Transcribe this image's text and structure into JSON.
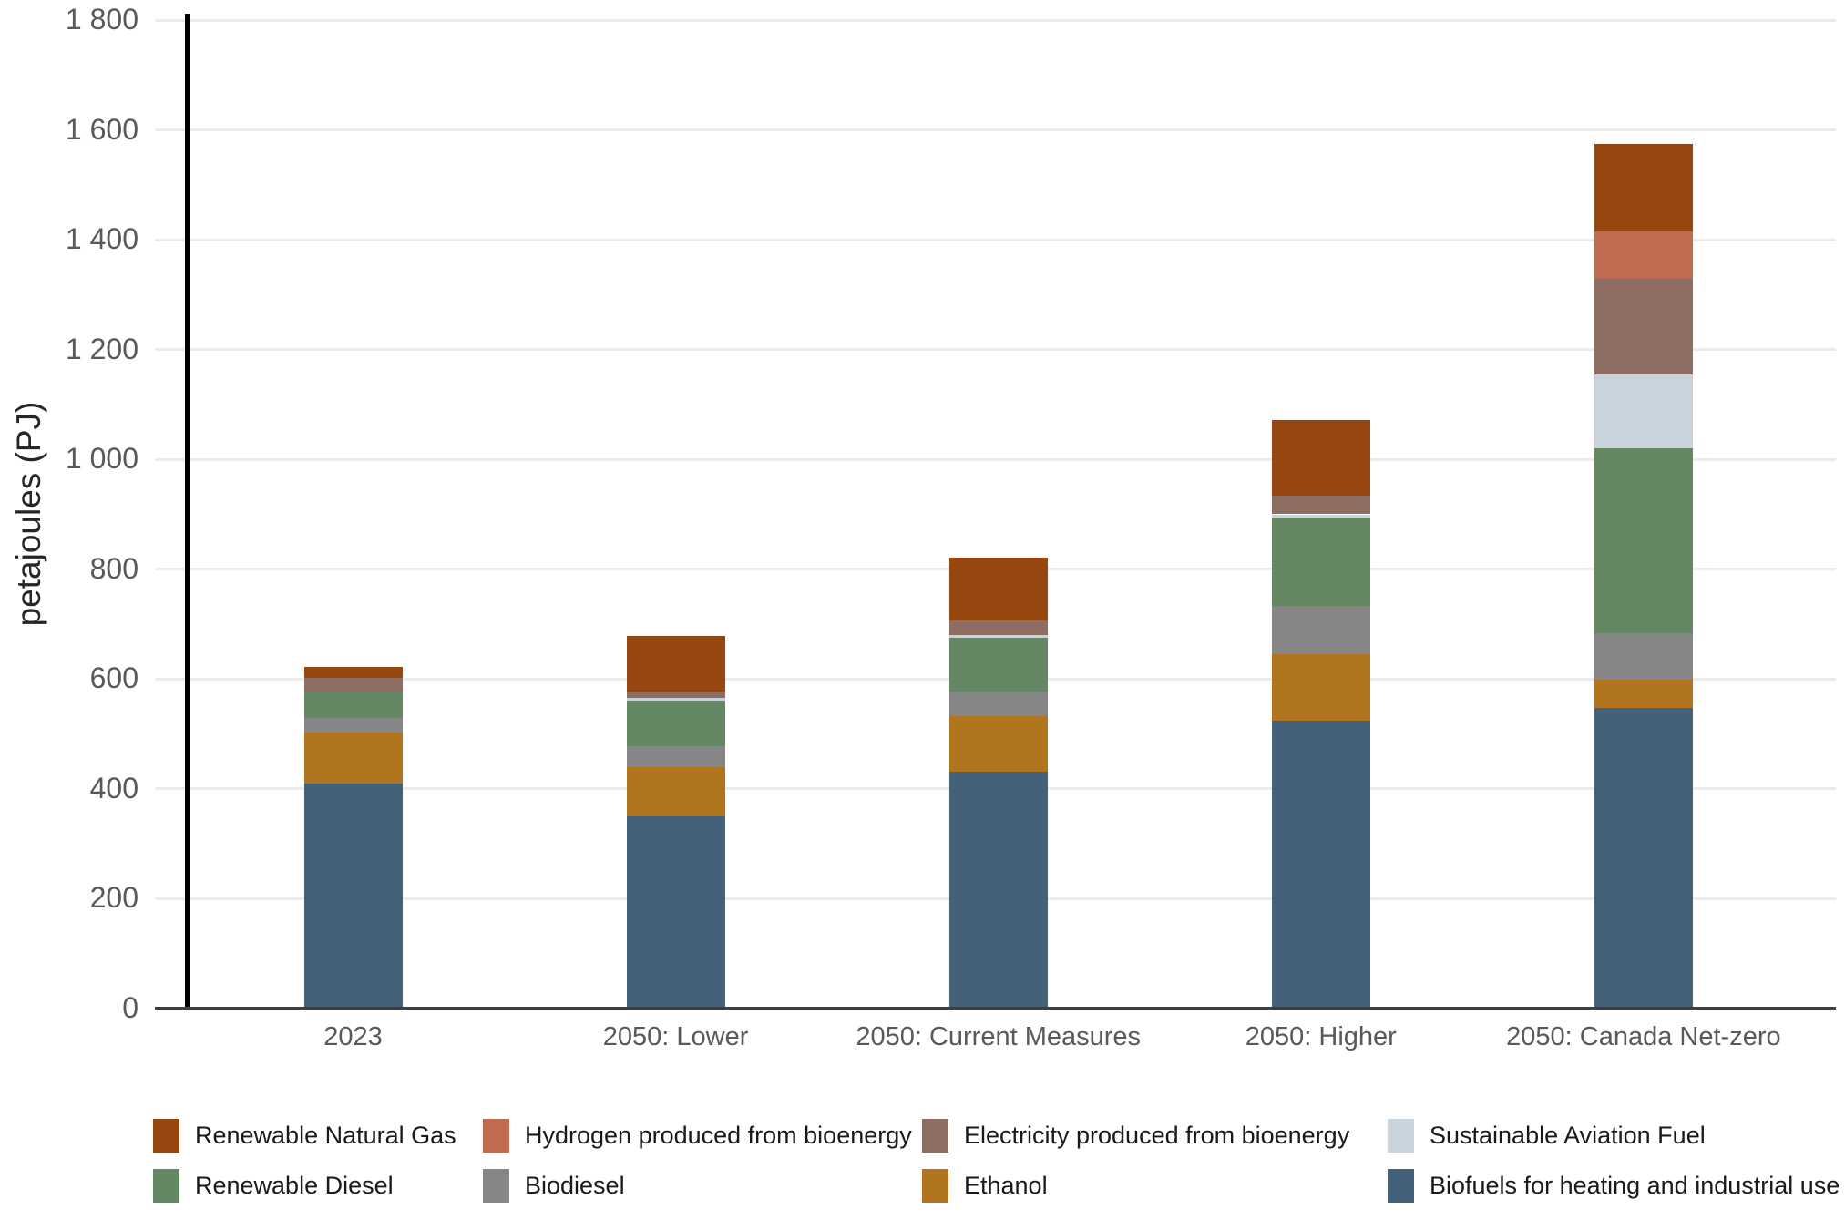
{
  "chart_data": {
    "type": "stacked-bar",
    "title": "",
    "ylabel": "petajoules (PJ)",
    "xlabel": "",
    "categories": [
      "2023",
      "2050: Lower",
      "2050: Current Measures",
      "2050: Higher",
      "2050: Canada Net-zero"
    ],
    "series": [
      {
        "name": "Biofuels for heating and industrial use",
        "color": "#44617B",
        "values": [
          409,
          350,
          432,
          525,
          548
        ]
      },
      {
        "name": "Ethanol",
        "color": "#B1751F",
        "values": [
          93,
          90,
          101,
          120,
          51
        ]
      },
      {
        "name": "Biodiesel",
        "color": "#868686",
        "values": [
          28,
          37,
          44,
          88,
          85
        ]
      },
      {
        "name": "Renewable Diesel",
        "color": "#648764",
        "values": [
          47,
          84,
          98,
          162,
          337
        ]
      },
      {
        "name": "Sustainable Aviation Fuel",
        "color": "#C8D3DC",
        "values": [
          0,
          5,
          5,
          5,
          133
        ]
      },
      {
        "name": "Electricity produced from bioenergy",
        "color": "#8E6D63",
        "values": [
          26,
          12,
          26,
          34,
          175
        ]
      },
      {
        "name": "Hydrogen produced from bioenergy",
        "color": "#C06B50",
        "values": [
          0,
          0,
          0,
          0,
          86
        ]
      },
      {
        "name": "Renewable Natural Gas",
        "color": "#95470F",
        "values": [
          19,
          100,
          115,
          137,
          160
        ]
      }
    ],
    "stack_totals": [
      622,
      678,
      821,
      1071,
      1575
    ],
    "ylim": [
      0,
      1800
    ],
    "ytick_values": [
      0,
      200,
      400,
      600,
      800,
      1000,
      1200,
      1400,
      1600,
      1800
    ],
    "ytick_labels": [
      "0",
      "200",
      "400",
      "600",
      "800",
      "1 000",
      "1 200",
      "1 400",
      "1 600",
      "1 800"
    ],
    "grid": "horizontal",
    "legend_position": "bottom",
    "legend_rows": [
      [
        "Renewable Natural Gas",
        "Hydrogen produced from bioenergy",
        "Electricity produced from bioenergy",
        "Sustainable Aviation Fuel"
      ],
      [
        "Renewable Diesel",
        "Biodiesel",
        "Ethanol",
        "Biofuels for heating and industrial use"
      ]
    ]
  }
}
